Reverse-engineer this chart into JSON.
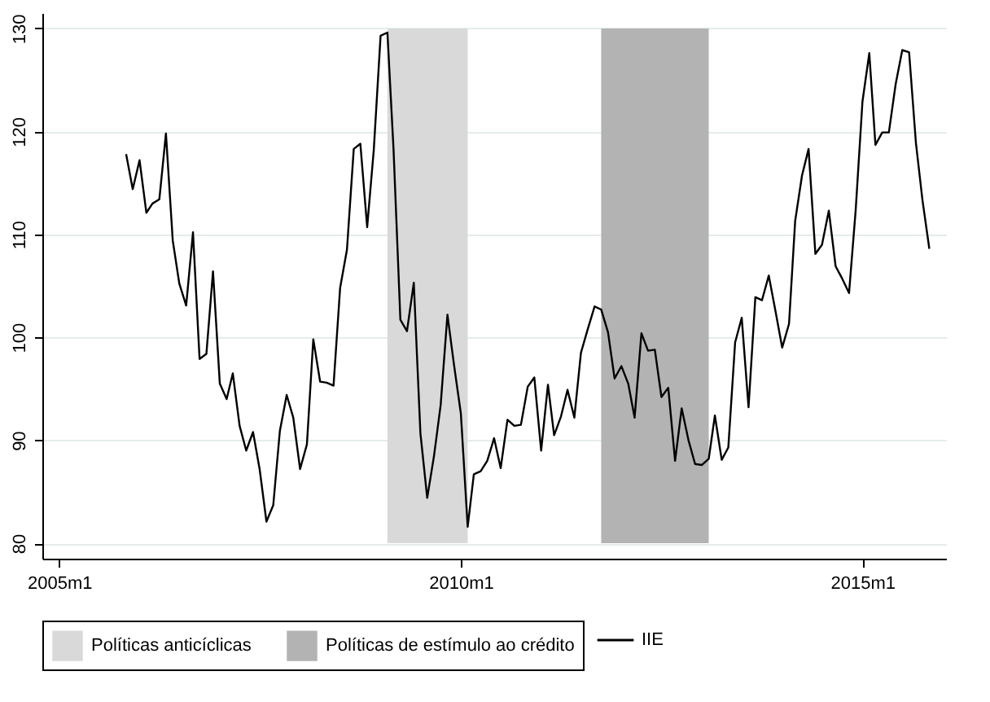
{
  "chart_data": {
    "type": "line",
    "x": [
      "2005-11",
      "2005-12",
      "2006-01",
      "2006-02",
      "2006-03",
      "2006-04",
      "2006-05",
      "2006-06",
      "2006-07",
      "2006-08",
      "2006-09",
      "2006-10",
      "2006-11",
      "2006-12",
      "2007-01",
      "2007-02",
      "2007-03",
      "2007-04",
      "2007-05",
      "2007-06",
      "2007-07",
      "2007-08",
      "2007-09",
      "2007-10",
      "2007-11",
      "2007-12",
      "2008-01",
      "2008-02",
      "2008-03",
      "2008-04",
      "2008-05",
      "2008-06",
      "2008-07",
      "2008-08",
      "2008-09",
      "2008-10",
      "2008-11",
      "2008-12",
      "2009-01",
      "2009-02",
      "2009-03",
      "2009-04",
      "2009-05",
      "2009-06",
      "2009-07",
      "2009-08",
      "2009-09",
      "2009-10",
      "2009-11",
      "2009-12",
      "2010-01",
      "2010-02",
      "2010-03",
      "2010-04",
      "2010-05",
      "2010-06",
      "2010-07",
      "2010-08",
      "2010-09",
      "2010-10",
      "2010-11",
      "2010-12",
      "2011-01",
      "2011-02",
      "2011-03",
      "2011-04",
      "2011-05",
      "2011-06",
      "2011-07",
      "2011-08",
      "2011-09",
      "2011-10",
      "2011-11",
      "2011-12",
      "2012-01",
      "2012-02",
      "2012-03",
      "2012-04",
      "2012-05",
      "2012-06",
      "2012-07",
      "2012-08",
      "2012-09",
      "2012-10",
      "2012-11",
      "2012-12",
      "2013-01",
      "2013-02",
      "2013-03",
      "2013-04",
      "2013-05",
      "2013-06",
      "2013-07",
      "2013-08",
      "2013-09",
      "2013-10",
      "2013-11",
      "2013-12",
      "2014-01",
      "2014-02",
      "2014-03",
      "2014-04",
      "2014-05",
      "2014-06",
      "2014-07",
      "2014-08",
      "2014-09",
      "2014-10",
      "2014-11",
      "2014-12",
      "2015-01",
      "2015-02",
      "2015-03",
      "2015-04",
      "2015-05",
      "2015-06",
      "2015-07",
      "2015-08",
      "2015-09",
      "2015-10",
      "2015-11"
    ],
    "series": [
      {
        "name": "IIE",
        "color": "#000000",
        "values": [
          117.8,
          114.4,
          117.2,
          112.1,
          113.0,
          113.4,
          119.8,
          109.4,
          105.2,
          103.1,
          110.2,
          97.9,
          98.4,
          106.4,
          95.5,
          94.0,
          96.5,
          91.4,
          89.0,
          90.8,
          87.2,
          82.1,
          83.7,
          90.9,
          94.4,
          92.2,
          87.2,
          89.6,
          99.8,
          95.7,
          95.6,
          95.3,
          104.8,
          108.5,
          118.3,
          118.8,
          110.7,
          118.2,
          129.3,
          129.6,
          118.2,
          101.7,
          100.6,
          105.3,
          90.7,
          84.4,
          88.5,
          93.4,
          102.2,
          97.3,
          92.6,
          81.6,
          86.7,
          87.0,
          88.0,
          90.2,
          87.3,
          92.0,
          91.4,
          91.5,
          95.2,
          96.1,
          89.0,
          95.4,
          90.5,
          92.3,
          94.9,
          92.2,
          98.5,
          100.8,
          103.0,
          102.7,
          100.5,
          96.0,
          97.2,
          95.5,
          92.2,
          100.4,
          98.7,
          98.8,
          94.2,
          95.1,
          88.0,
          93.1,
          90.0,
          87.7,
          87.6,
          88.2,
          92.4,
          88.1,
          89.3,
          99.5,
          101.9,
          93.2,
          103.9,
          103.6,
          106.0,
          102.6,
          99.0,
          101.3,
          111.3,
          115.7,
          118.3,
          108.1,
          109.0,
          112.3,
          106.9,
          105.7,
          104.3,
          112.3,
          122.9,
          127.6,
          118.7,
          119.9,
          119.9,
          124.6,
          127.9,
          127.7,
          118.9,
          113.3,
          108.6
        ]
      }
    ],
    "bands": [
      {
        "axis": "x",
        "from": "2009-02",
        "to": "2010-02",
        "label": "Políticas anticíclicas",
        "color": "#d9d9d9"
      },
      {
        "axis": "x",
        "from": "2011-10",
        "to": "2013-02",
        "label": "Políticas de estímulo ao crédito",
        "color": "#b3b3b3"
      }
    ],
    "xlim": [
      "2004-10-16",
      "2016-01-16"
    ],
    "xticks": [
      {
        "value": "2005-01",
        "label": "2005m1"
      },
      {
        "value": "2010-01",
        "label": "2010m1"
      },
      {
        "value": "2015-01",
        "label": "2015m1"
      }
    ],
    "ylim": [
      78.5,
      131.5
    ],
    "yticks": [
      80,
      90,
      100,
      110,
      120,
      130
    ],
    "grid": "y",
    "legend": "bottom",
    "marker": "none",
    "line_style": "solid"
  }
}
